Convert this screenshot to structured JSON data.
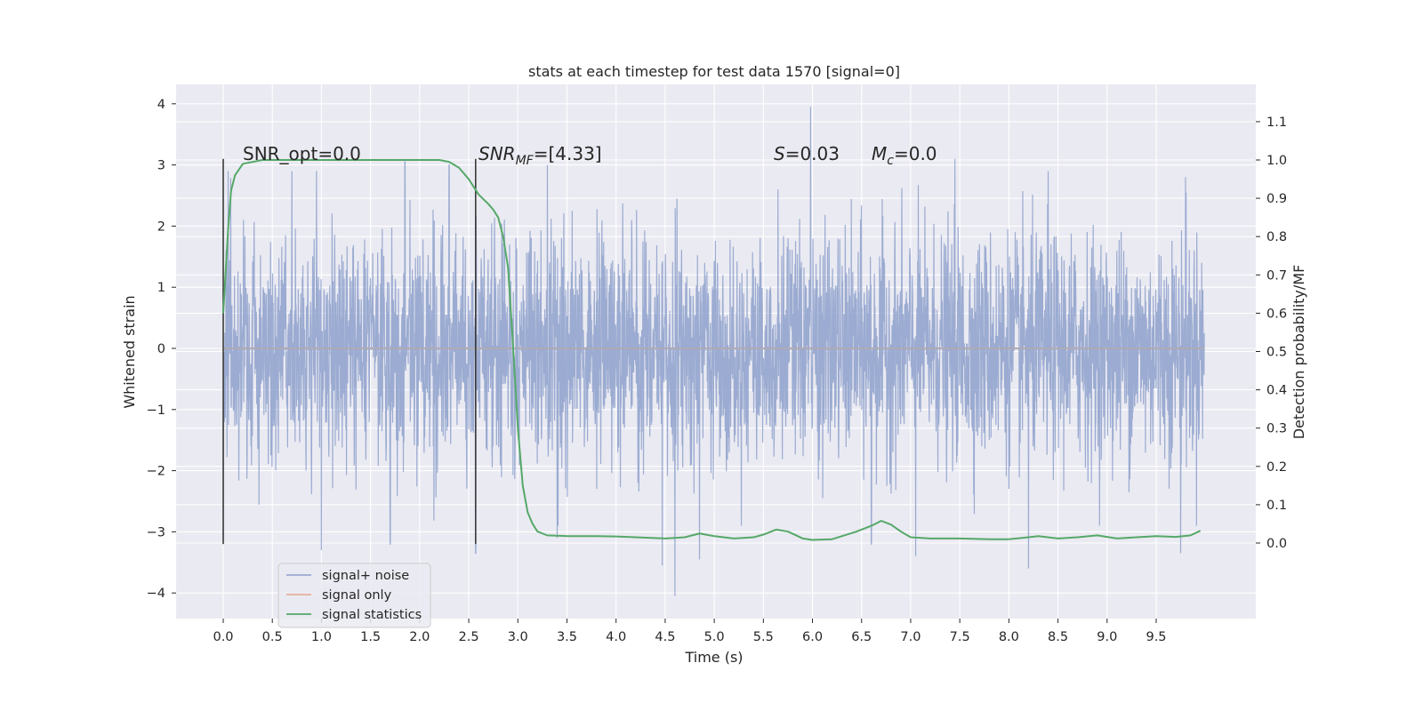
{
  "chart_data": {
    "type": "line",
    "title": "stats at each timestep for test data 1570 [signal=0]",
    "xlabel": "Time (s)",
    "ylabel_left": "Whitened strain",
    "ylabel_right": "Detection probability/MF",
    "xlim": [
      -0.5,
      10.5
    ],
    "ylim_left": [
      -4.4,
      4.3
    ],
    "ylim_right": [
      -0.2,
      1.2
    ],
    "x_ticks": [
      "0.0",
      "0.5",
      "1.0",
      "1.5",
      "2.0",
      "2.5",
      "3.0",
      "3.5",
      "4.0",
      "4.5",
      "5.0",
      "5.5",
      "6.0",
      "6.5",
      "7.0",
      "7.5",
      "8.0",
      "8.5",
      "9.0",
      "9.5"
    ],
    "y_ticks_left": [
      "−4",
      "−3",
      "−2",
      "−1",
      "0",
      "1",
      "2",
      "3",
      "4"
    ],
    "y_ticks_right": [
      "0.0",
      "0.1",
      "0.2",
      "0.3",
      "0.4",
      "0.5",
      "0.6",
      "0.7",
      "0.8",
      "0.9",
      "1.0",
      "1.1"
    ],
    "grid": true,
    "legend_position": "lower-left",
    "background": "#eaeaf2",
    "annotations": {
      "snr_opt": "SNR_opt=0.0",
      "snr_mf_prefix": "SNR",
      "snr_mf_sub": "MF",
      "snr_mf_value": "=[4.33]",
      "s_symbol": "S",
      "s_value": "=0.03",
      "mc_symbol": "M",
      "mc_sub": "c",
      "mc_value": "=0.0"
    },
    "vertical_markers": [
      0.0,
      2.57
    ],
    "series": [
      {
        "name": "signal+ noise",
        "color": "#8da0cb",
        "axis": "left",
        "x_range": [
          0.0,
          9.99
        ],
        "envelope_typical": [
          -2.0,
          2.0
        ],
        "peak_values": [
          {
            "x": 0.05,
            "y": 2.9
          },
          {
            "x": 0.7,
            "y": 2.9
          },
          {
            "x": 0.95,
            "y": 2.9
          },
          {
            "x": 1.85,
            "y": 3.05
          },
          {
            "x": 2.3,
            "y": 3.0
          },
          {
            "x": 3.3,
            "y": 3.0
          },
          {
            "x": 4.6,
            "y": 2.9
          },
          {
            "x": 5.65,
            "y": 2.6
          },
          {
            "x": 5.98,
            "y": 3.95
          },
          {
            "x": 7.45,
            "y": 3.1
          },
          {
            "x": 8.4,
            "y": 2.9
          },
          {
            "x": 9.8,
            "y": 2.8
          }
        ],
        "trough_values": [
          {
            "x": 0.0,
            "y": -3.1
          },
          {
            "x": 1.0,
            "y": -3.3
          },
          {
            "x": 1.7,
            "y": -3.2
          },
          {
            "x": 2.57,
            "y": -3.35
          },
          {
            "x": 3.4,
            "y": -3.1
          },
          {
            "x": 4.47,
            "y": -3.55
          },
          {
            "x": 4.6,
            "y": -4.05
          },
          {
            "x": 4.85,
            "y": -3.45
          },
          {
            "x": 6.6,
            "y": -3.2
          },
          {
            "x": 7.05,
            "y": -3.4
          },
          {
            "x": 8.2,
            "y": -3.6
          },
          {
            "x": 9.75,
            "y": -3.35
          }
        ]
      },
      {
        "name": "signal only",
        "color": "#fc8d62",
        "axis": "left",
        "x": [
          0.0,
          9.99
        ],
        "y": [
          0.0,
          0.0
        ]
      },
      {
        "name": "signal statistics",
        "color": "#55a868",
        "axis": "right",
        "x": [
          0.0,
          0.05,
          0.08,
          0.12,
          0.2,
          0.4,
          0.8,
          1.2,
          1.6,
          2.0,
          2.2,
          2.3,
          2.4,
          2.5,
          2.6,
          2.7,
          2.75,
          2.8,
          2.85,
          2.9,
          2.95,
          3.0,
          3.05,
          3.1,
          3.15,
          3.2,
          3.3,
          3.5,
          3.8,
          4.0,
          4.2,
          4.5,
          4.7,
          4.85,
          5.0,
          5.2,
          5.4,
          5.5,
          5.63,
          5.75,
          5.9,
          6.0,
          6.2,
          6.45,
          6.6,
          6.7,
          6.8,
          6.9,
          7.0,
          7.2,
          7.5,
          7.8,
          8.0,
          8.2,
          8.3,
          8.5,
          8.7,
          8.9,
          9.1,
          9.3,
          9.5,
          9.7,
          9.85,
          9.95
        ],
        "y": [
          0.6,
          0.82,
          0.92,
          0.96,
          0.99,
          1.0,
          1.0,
          1.0,
          1.0,
          1.0,
          1.0,
          0.995,
          0.98,
          0.95,
          0.91,
          0.885,
          0.87,
          0.85,
          0.8,
          0.72,
          0.52,
          0.3,
          0.15,
          0.08,
          0.05,
          0.03,
          0.02,
          0.018,
          0.018,
          0.017,
          0.015,
          0.012,
          0.015,
          0.025,
          0.018,
          0.012,
          0.015,
          0.022,
          0.035,
          0.03,
          0.012,
          0.008,
          0.01,
          0.03,
          0.045,
          0.058,
          0.048,
          0.03,
          0.015,
          0.012,
          0.012,
          0.01,
          0.01,
          0.015,
          0.018,
          0.012,
          0.015,
          0.02,
          0.012,
          0.015,
          0.018,
          0.016,
          0.02,
          0.032
        ]
      }
    ]
  }
}
